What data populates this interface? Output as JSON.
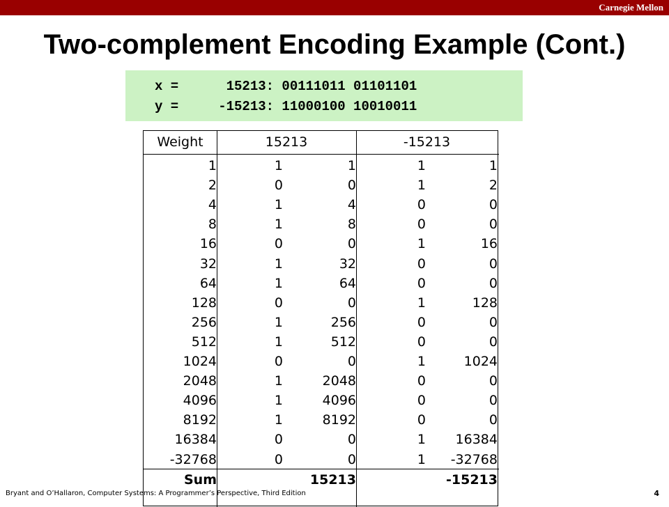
{
  "header": {
    "brand": "Carnegie Mellon",
    "title": "Two-complement Encoding Example (Cont.)"
  },
  "code": [
    "x =      15213: 00111011 01101101",
    "y =     -15213: 11000100 10010011"
  ],
  "table": {
    "header": [
      "Weight",
      "15213",
      "-15213"
    ],
    "rows": [
      [
        "1",
        "1",
        "1",
        "1",
        "1"
      ],
      [
        "2",
        "0",
        "0",
        "1",
        "2"
      ],
      [
        "4",
        "1",
        "4",
        "0",
        "0"
      ],
      [
        "8",
        "1",
        "8",
        "0",
        "0"
      ],
      [
        "16",
        "0",
        "0",
        "1",
        "16"
      ],
      [
        "32",
        "1",
        "32",
        "0",
        "0"
      ],
      [
        "64",
        "1",
        "64",
        "0",
        "0"
      ],
      [
        "128",
        "0",
        "0",
        "1",
        "128"
      ],
      [
        "256",
        "1",
        "256",
        "0",
        "0"
      ],
      [
        "512",
        "1",
        "512",
        "0",
        "0"
      ],
      [
        "1024",
        "0",
        "0",
        "1",
        "1024"
      ],
      [
        "2048",
        "1",
        "2048",
        "0",
        "0"
      ],
      [
        "4096",
        "1",
        "4096",
        "0",
        "0"
      ],
      [
        "8192",
        "1",
        "8192",
        "0",
        "0"
      ],
      [
        "16384",
        "0",
        "0",
        "1",
        "16384"
      ],
      [
        "-32768",
        "0",
        "0",
        "1",
        "-32768"
      ]
    ],
    "sum": {
      "label": "Sum",
      "x": "15213",
      "y": "-15213"
    }
  },
  "footer": {
    "citation": "Bryant and O’Hallaron, Computer Systems: A Programmer’s Perspective, Third Edition",
    "page": "4"
  }
}
